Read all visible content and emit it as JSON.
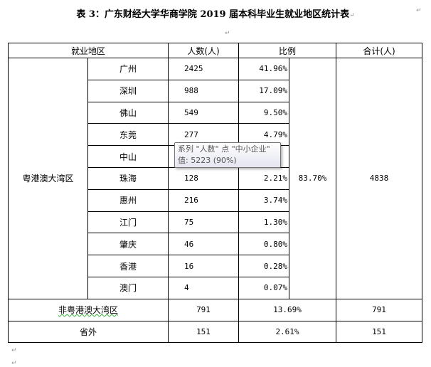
{
  "title": "表 3：广东财经大学华商学院 2019 届本科毕业生就业地区统计表",
  "headers": {
    "region": "就业地区",
    "count": "人数(人)",
    "ratio": "比例",
    "total": "合计(人)"
  },
  "gba": {
    "label": "粤港澳大湾区",
    "ratio": "83.70%",
    "total": "4838",
    "cities": [
      {
        "name": "广州",
        "count": "2425",
        "ratio": "41.96%"
      },
      {
        "name": "深圳",
        "count": "988",
        "ratio": "17.09%"
      },
      {
        "name": "佛山",
        "count": "549",
        "ratio": "9.50%"
      },
      {
        "name": "东莞",
        "count": "277",
        "ratio": "4.79%"
      },
      {
        "name": "中山",
        "count": "",
        "ratio": ""
      },
      {
        "name": "珠海",
        "count": "128",
        "ratio": "2.21%"
      },
      {
        "name": "惠州",
        "count": "216",
        "ratio": "3.74%"
      },
      {
        "name": "江门",
        "count": "75",
        "ratio": "1.30%"
      },
      {
        "name": "肇庆",
        "count": "46",
        "ratio": "0.80%"
      },
      {
        "name": "香港",
        "count": "16",
        "ratio": "0.28%"
      },
      {
        "name": "澳门",
        "count": "4",
        "ratio": "0.07%"
      }
    ]
  },
  "non_gba": {
    "label": "非粤港澳大湾区",
    "count": "791",
    "ratio": "13.69%",
    "total": "791"
  },
  "outside": {
    "label": "省外",
    "count": "151",
    "ratio": "2.61%",
    "total": "151"
  },
  "tooltip": {
    "line1": "系列 \"人数\" 点 \"中小企业\"",
    "line2": "值: 5223 (90%)"
  },
  "paragraph_mark": "↵"
}
